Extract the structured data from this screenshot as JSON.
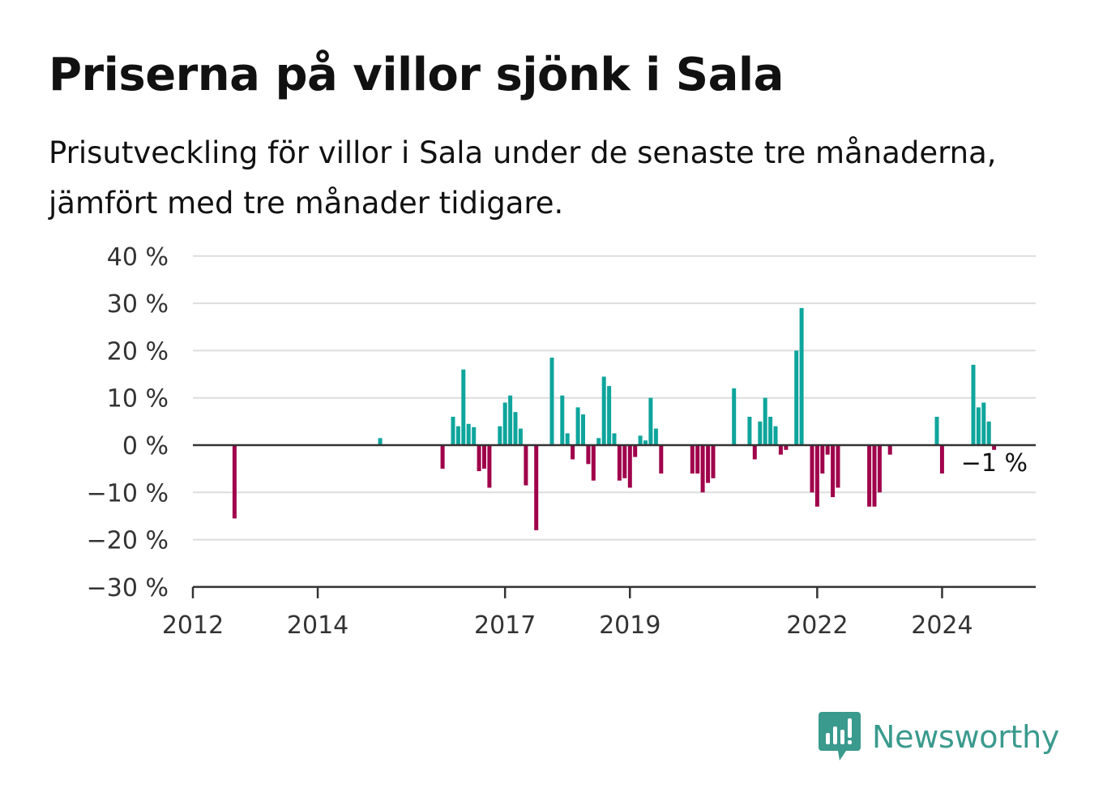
{
  "title": "Priserna på villor sjönk i Sala",
  "subtitle": "Prisutveckling för villor i Sala under de senaste tre månaderna, jämfört med tre månader tidigare.",
  "brand": {
    "name": "Newsworthy",
    "icon": "newsworthy-bar-chart-icon",
    "color": "#3a9a8e"
  },
  "colors": {
    "positive": "#0ea59c",
    "negative": "#a0004b",
    "grid": "#dddddd",
    "axis": "#333333"
  },
  "chart_data": {
    "type": "bar",
    "x_axis": {
      "type": "date",
      "ticks": [
        "2012",
        "2014",
        "2017",
        "2019",
        "2022",
        "2024"
      ],
      "range": [
        "2012-01",
        "2025-08"
      ]
    },
    "y_axis": {
      "ticks": [
        "40 %",
        "30 %",
        "20 %",
        "10 %",
        "0 %",
        "−10 %",
        "−20 %",
        "−30 %"
      ],
      "ylim": [
        -30,
        40
      ],
      "unit": "%"
    },
    "grid": "horizontal",
    "annotation": {
      "text": "−1 %",
      "date": "2025-03"
    },
    "points": [
      {
        "date": "2012-09",
        "value": -15.5
      },
      {
        "date": "2015-01",
        "value": 1.5
      },
      {
        "date": "2016-01",
        "value": -5
      },
      {
        "date": "2016-03",
        "value": 6
      },
      {
        "date": "2016-04",
        "value": 4
      },
      {
        "date": "2016-05",
        "value": 16
      },
      {
        "date": "2016-06",
        "value": 4.5
      },
      {
        "date": "2016-07",
        "value": 3.8
      },
      {
        "date": "2016-08",
        "value": -5.5
      },
      {
        "date": "2016-09",
        "value": -5
      },
      {
        "date": "2016-10",
        "value": -9
      },
      {
        "date": "2016-12",
        "value": 4
      },
      {
        "date": "2017-01",
        "value": 9
      },
      {
        "date": "2017-02",
        "value": 10.5
      },
      {
        "date": "2017-03",
        "value": 7
      },
      {
        "date": "2017-04",
        "value": 3.5
      },
      {
        "date": "2017-05",
        "value": -8.5
      },
      {
        "date": "2017-07",
        "value": -18
      },
      {
        "date": "2017-10",
        "value": 18.5
      },
      {
        "date": "2017-12",
        "value": 10.5
      },
      {
        "date": "2018-01",
        "value": 2.5
      },
      {
        "date": "2018-02",
        "value": -3
      },
      {
        "date": "2018-03",
        "value": 8
      },
      {
        "date": "2018-04",
        "value": 6.5
      },
      {
        "date": "2018-05",
        "value": -4
      },
      {
        "date": "2018-06",
        "value": -7.5
      },
      {
        "date": "2018-07",
        "value": 1.5
      },
      {
        "date": "2018-08",
        "value": 14.5
      },
      {
        "date": "2018-09",
        "value": 12.5
      },
      {
        "date": "2018-10",
        "value": 2.5
      },
      {
        "date": "2018-11",
        "value": -7.5
      },
      {
        "date": "2018-12",
        "value": -7
      },
      {
        "date": "2019-01",
        "value": -9
      },
      {
        "date": "2019-02",
        "value": -2.5
      },
      {
        "date": "2019-03",
        "value": 2
      },
      {
        "date": "2019-04",
        "value": 1
      },
      {
        "date": "2019-05",
        "value": 10
      },
      {
        "date": "2019-06",
        "value": 3.5
      },
      {
        "date": "2019-07",
        "value": -6
      },
      {
        "date": "2020-01",
        "value": -6
      },
      {
        "date": "2020-02",
        "value": -6
      },
      {
        "date": "2020-03",
        "value": -10
      },
      {
        "date": "2020-04",
        "value": -8
      },
      {
        "date": "2020-05",
        "value": -7
      },
      {
        "date": "2020-09",
        "value": 12
      },
      {
        "date": "2020-12",
        "value": 6
      },
      {
        "date": "2021-01",
        "value": -3
      },
      {
        "date": "2021-02",
        "value": 5
      },
      {
        "date": "2021-03",
        "value": 10
      },
      {
        "date": "2021-04",
        "value": 6
      },
      {
        "date": "2021-05",
        "value": 4
      },
      {
        "date": "2021-06",
        "value": -2
      },
      {
        "date": "2021-07",
        "value": -1
      },
      {
        "date": "2021-09",
        "value": 20
      },
      {
        "date": "2021-10",
        "value": 29
      },
      {
        "date": "2021-12",
        "value": -10
      },
      {
        "date": "2022-01",
        "value": -13
      },
      {
        "date": "2022-02",
        "value": -6
      },
      {
        "date": "2022-03",
        "value": -2
      },
      {
        "date": "2022-04",
        "value": -11
      },
      {
        "date": "2022-05",
        "value": -9
      },
      {
        "date": "2022-11",
        "value": -13
      },
      {
        "date": "2022-12",
        "value": -13
      },
      {
        "date": "2023-01",
        "value": -10
      },
      {
        "date": "2023-03",
        "value": -2
      },
      {
        "date": "2023-12",
        "value": 6
      },
      {
        "date": "2024-01",
        "value": -6
      },
      {
        "date": "2024-07",
        "value": 17
      },
      {
        "date": "2024-08",
        "value": 8
      },
      {
        "date": "2024-09",
        "value": 9
      },
      {
        "date": "2024-10",
        "value": 5
      },
      {
        "date": "2024-11",
        "value": -1
      }
    ]
  }
}
